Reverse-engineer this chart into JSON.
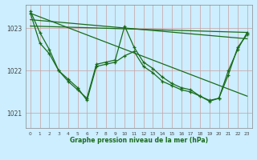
{
  "xlabel": "Graphe pression niveau de la mer (hPa)",
  "background_color": "#cceeff",
  "grid_color_h": "#c8a0a0",
  "grid_color_v": "#c8a0a0",
  "line_color": "#1a6b1a",
  "ylim": [
    1020.65,
    1023.55
  ],
  "xlim": [
    -0.5,
    23.5
  ],
  "yticks": [
    1021,
    1022,
    1023
  ],
  "xticks": [
    0,
    1,
    2,
    3,
    4,
    5,
    6,
    7,
    8,
    9,
    10,
    11,
    12,
    13,
    14,
    15,
    16,
    17,
    18,
    19,
    20,
    21,
    22,
    23
  ],
  "curve1_x": [
    0,
    1,
    2,
    3,
    4,
    5,
    6,
    7,
    8,
    9,
    10,
    11,
    12,
    13,
    14,
    15,
    16,
    17,
    18,
    19,
    20,
    21,
    22,
    23
  ],
  "curve1_y": [
    1023.4,
    1022.9,
    1022.5,
    1022.0,
    1021.75,
    1021.55,
    1021.35,
    1022.15,
    1022.2,
    1022.25,
    1023.05,
    1022.55,
    1022.2,
    1022.05,
    1021.85,
    1021.7,
    1021.6,
    1021.55,
    1021.4,
    1021.3,
    1021.35,
    1022.0,
    1022.5,
    1022.9
  ],
  "curve2_x": [
    0,
    1,
    2,
    3,
    4,
    5,
    6,
    7,
    8,
    9,
    10,
    11,
    12,
    13,
    14,
    15,
    16,
    17,
    18,
    19,
    20,
    21,
    22,
    23
  ],
  "curve2_y": [
    1023.35,
    1022.65,
    1022.4,
    1022.0,
    1021.8,
    1021.6,
    1021.3,
    1022.1,
    1022.15,
    1022.2,
    1022.35,
    1022.45,
    1022.1,
    1021.95,
    1021.75,
    1021.65,
    1021.55,
    1021.5,
    1021.4,
    1021.28,
    1021.35,
    1021.9,
    1022.55,
    1022.85
  ],
  "trend1_x": [
    0,
    23
  ],
  "trend1_y": [
    1023.35,
    1021.4
  ],
  "trend2_x": [
    0,
    23
  ],
  "trend2_y": [
    1023.2,
    1022.75
  ],
  "trend3_x": [
    0,
    23
  ],
  "trend3_y": [
    1023.05,
    1022.9
  ]
}
